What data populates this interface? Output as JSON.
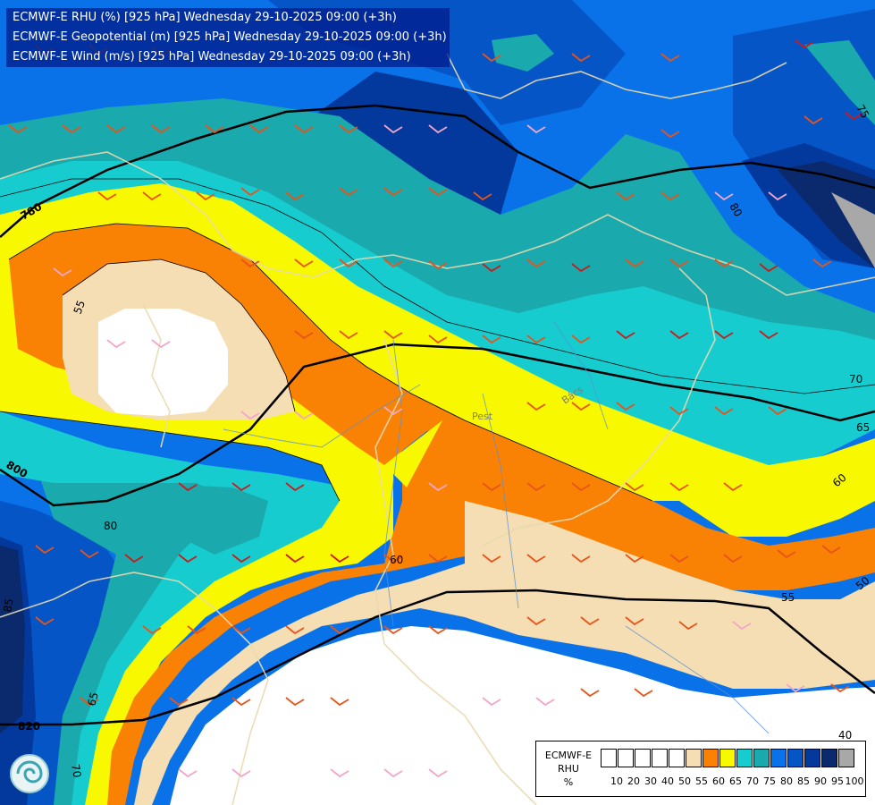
{
  "title_lines": [
    "ECMWF-E RHU (%) [925 hPa] Wednesday 29-10-2025 09:00 (+3h)",
    "ECMWF-E Geopotential (m) [925 hPa] Wednesday 29-10-2025 09:00 (+3h)",
    "ECMWF-E Wind (m/s) [925 hPa] Wednesday 29-10-2025 09:00 (+3h)"
  ],
  "legend": {
    "model": "ECMWF-E",
    "variable": "RHU",
    "unit": "%",
    "classes": [
      {
        "upper": 10,
        "color": "#ffffff"
      },
      {
        "upper": 20,
        "color": "#ffffff"
      },
      {
        "upper": 30,
        "color": "#ffffff"
      },
      {
        "upper": 40,
        "color": "#ffffff"
      },
      {
        "upper": 50,
        "color": "#ffffff"
      },
      {
        "upper": 55,
        "color": "#f5deb3"
      },
      {
        "upper": 60,
        "color": "#f98205"
      },
      {
        "upper": 65,
        "color": "#f8f800"
      },
      {
        "upper": 70,
        "color": "#17cccf"
      },
      {
        "upper": 75,
        "color": "#1aa9ac"
      },
      {
        "upper": 80,
        "color": "#0a72e8"
      },
      {
        "upper": 85,
        "color": "#0555c7"
      },
      {
        "upper": 90,
        "color": "#03399c"
      },
      {
        "upper": 95,
        "color": "#0b2a6e"
      },
      {
        "upper": 100,
        "color": "#a8a8a8"
      }
    ],
    "tick_labels": [
      "10",
      "20",
      "30",
      "40",
      "50",
      "55",
      "60",
      "65",
      "70",
      "75",
      "80",
      "85",
      "90",
      "95",
      "100"
    ]
  },
  "geopotential_labels": [
    "780",
    "800",
    "820"
  ],
  "rhu_labels": [
    "55",
    "60",
    "65",
    "70",
    "75",
    "80",
    "85",
    "40",
    "50"
  ],
  "place_labels": [
    "Pest",
    "Bács"
  ]
}
